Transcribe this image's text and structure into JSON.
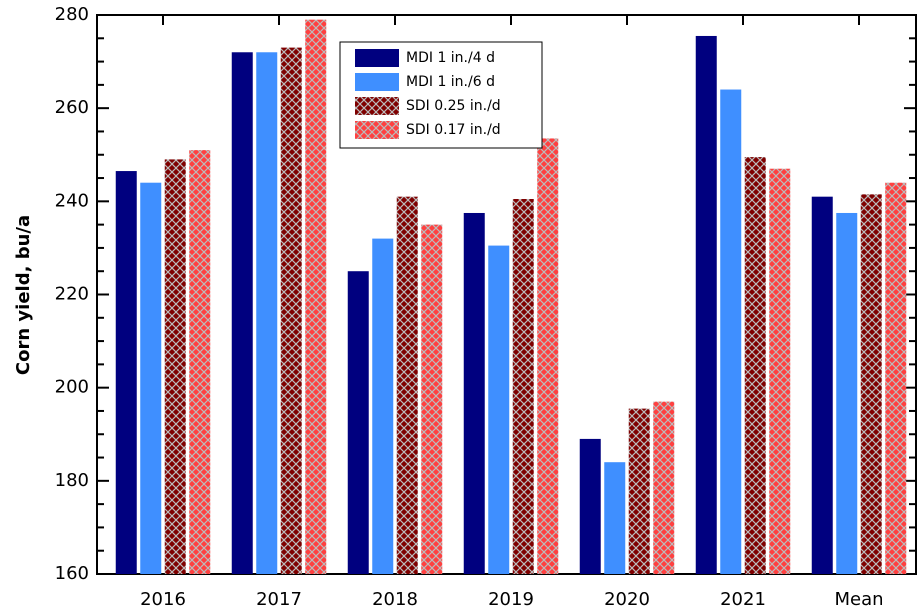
{
  "chart_data": {
    "type": "bar",
    "ylabel": "Corn yield, bu/a",
    "categories": [
      "2016",
      "2017",
      "2018",
      "2019",
      "2020",
      "2021",
      "Mean"
    ],
    "series": [
      {
        "name": "MDI 1 in./4 d",
        "color": "#00007f",
        "values": [
          246.5,
          272,
          225,
          237.5,
          189,
          275.5,
          241
        ]
      },
      {
        "name": "MDI 1 in./6 d",
        "color": "#3f8fff",
        "values": [
          244,
          272,
          232,
          230.5,
          184,
          264,
          237.5
        ]
      },
      {
        "name": "SDI 0.25 in./d",
        "color": "#7f0000",
        "pattern": "crosshatch",
        "values": [
          249,
          273,
          241,
          240.5,
          195.5,
          249.5,
          241.5
        ]
      },
      {
        "name": "SDI 0.17 in./d",
        "color": "#ff4040",
        "pattern": "crosshatch",
        "values": [
          251,
          279,
          235,
          253.5,
          197,
          247,
          244
        ]
      }
    ],
    "ylim": [
      160,
      280
    ],
    "yticks": [
      160,
      180,
      200,
      220,
      240,
      260,
      280
    ],
    "legend": "upper-left"
  }
}
